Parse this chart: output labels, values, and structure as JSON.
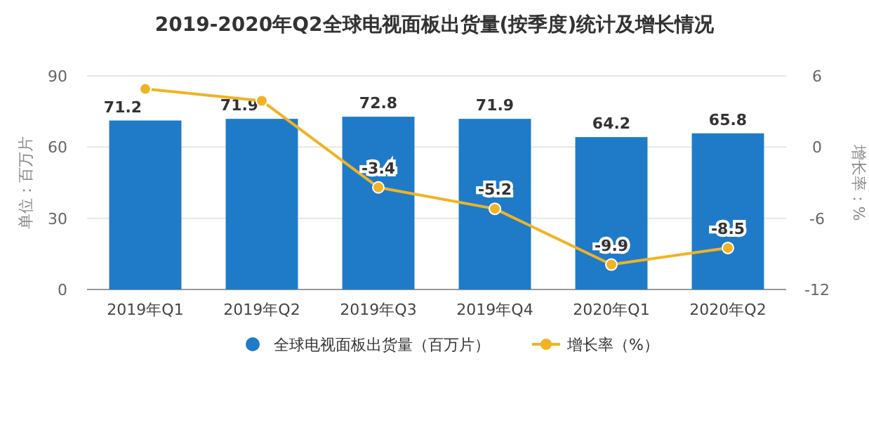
{
  "chart_data": {
    "type": "bar",
    "title": "2019-2020年Q2全球电视面板出货量(按季度)统计及增长情况",
    "categories": [
      "2019年Q1",
      "2019年Q2",
      "2019年Q3",
      "2019年Q4",
      "2020年Q1",
      "2020年Q2"
    ],
    "series": [
      {
        "name": "全球电视面板出货量（百万片）",
        "color": "#1f7bc8",
        "values": [
          71.2,
          71.9,
          72.8,
          71.9,
          64.2,
          65.8
        ],
        "value_labels": [
          "71.2",
          "71.9",
          "72.8",
          "71.9",
          "64.2",
          "65.8"
        ]
      },
      {
        "name": "增长率（%）",
        "type": "line",
        "axis": "y2",
        "color": "#f1b325",
        "values": [
          4.9,
          3.9,
          -3.4,
          -5.2,
          -9.9,
          -8.5
        ],
        "value_labels": [
          null,
          null,
          "-3.4",
          "-5.2",
          "-9.9",
          "-8.5"
        ]
      }
    ],
    "ylabel": "单位：百万片",
    "y2label": "增长率：%",
    "ylim": [
      0,
      90
    ],
    "yticks": [
      0,
      30,
      60,
      90
    ],
    "y2lim": [
      -12,
      6
    ],
    "y2ticks": [
      -12,
      -6,
      0,
      6
    ],
    "grid": "y",
    "legend": "bottom",
    "marker": "circle"
  }
}
